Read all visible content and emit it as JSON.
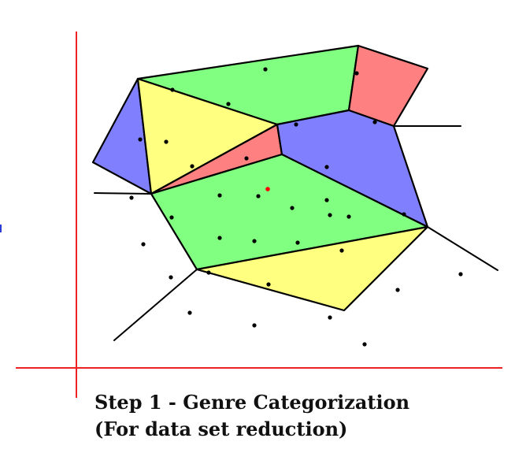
{
  "caption": {
    "line1": "Step 1 - Genre Categorization",
    "line2": "(For data set reduction)"
  },
  "colors": {
    "green": "#80ff80",
    "yellow": "#ffff80",
    "red": "#ff8080",
    "blue": "#8080ff",
    "axis": "#ee2222",
    "edge": "#000000",
    "point": "#000000",
    "query_point": "#ff0000"
  }
}
